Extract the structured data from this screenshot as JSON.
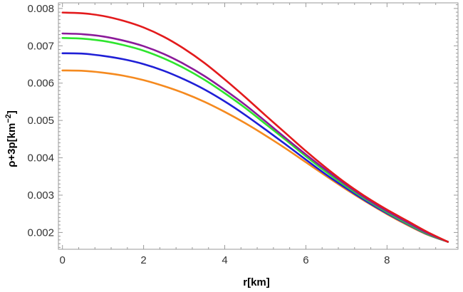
{
  "chart_data": {
    "type": "line",
    "title": "",
    "xlabel": "r[km]",
    "ylabel_parts": {
      "main": "ρ+3p[km",
      "superscript": "−2",
      "close": "]"
    },
    "xlim": [
      -0.1,
      9.75
    ],
    "ylim": [
      0.00155,
      0.00815
    ],
    "x_ticks": [
      0,
      2,
      4,
      6,
      8
    ],
    "x_tick_labels": [
      "0",
      "2",
      "4",
      "6",
      "8"
    ],
    "y_ticks": [
      0.002,
      0.003,
      0.004,
      0.005,
      0.006,
      0.007,
      0.008
    ],
    "y_tick_labels": [
      "0.002",
      "0.003",
      "0.004",
      "0.005",
      "0.006",
      "0.007",
      "0.008"
    ],
    "grid": false,
    "legend": "none",
    "series": [
      {
        "color": "#e31a1c",
        "x": [
          0,
          0.5,
          1,
          1.5,
          2,
          2.5,
          3,
          3.5,
          4,
          4.5,
          5,
          5.5,
          6,
          6.5,
          7,
          7.5,
          8,
          8.5,
          9,
          9.5
        ],
        "y": [
          0.00789,
          0.00787,
          0.0078,
          0.00767,
          0.00749,
          0.00724,
          0.00692,
          0.00654,
          0.0061,
          0.00563,
          0.00514,
          0.00466,
          0.00418,
          0.00373,
          0.00331,
          0.00294,
          0.00261,
          0.00231,
          0.00201,
          0.00175
        ]
      },
      {
        "color": "#8b1a9a",
        "x": [
          0,
          0.5,
          1,
          1.5,
          2,
          2.5,
          3,
          3.5,
          4,
          4.5,
          5,
          5.5,
          6,
          6.5,
          7,
          7.5,
          8,
          8.5,
          9,
          9.5
        ],
        "y": [
          0.00733,
          0.00731,
          0.00725,
          0.00714,
          0.00699,
          0.00678,
          0.00651,
          0.00619,
          0.00582,
          0.00542,
          0.00498,
          0.00453,
          0.00409,
          0.00367,
          0.00327,
          0.0029,
          0.00257,
          0.00227,
          0.00198,
          0.00175
        ]
      },
      {
        "color": "#2ee52e",
        "x": [
          0,
          0.5,
          1,
          1.5,
          2,
          2.5,
          3,
          3.5,
          4,
          4.5,
          5,
          5.5,
          6,
          6.5,
          7,
          7.5,
          8,
          8.5,
          9,
          9.5
        ],
        "y": [
          0.00721,
          0.00719,
          0.00713,
          0.00702,
          0.00687,
          0.00666,
          0.0064,
          0.00609,
          0.00573,
          0.00534,
          0.00491,
          0.00448,
          0.00404,
          0.00362,
          0.00323,
          0.00287,
          0.00254,
          0.00224,
          0.00196,
          0.00175
        ]
      },
      {
        "color": "#1f1fd6",
        "x": [
          0,
          0.5,
          1,
          1.5,
          2,
          2.5,
          3,
          3.5,
          4,
          4.5,
          5,
          5.5,
          6,
          6.5,
          7,
          7.5,
          8,
          8.5,
          9,
          9.5
        ],
        "y": [
          0.0068,
          0.00679,
          0.00673,
          0.00664,
          0.00651,
          0.00633,
          0.0061,
          0.00583,
          0.00551,
          0.00515,
          0.00476,
          0.00436,
          0.00395,
          0.00355,
          0.00318,
          0.00283,
          0.00251,
          0.00222,
          0.00195,
          0.00175
        ]
      },
      {
        "color": "#f58a1f",
        "x": [
          0,
          0.5,
          1,
          1.5,
          2,
          2.5,
          3,
          3.5,
          4,
          4.5,
          5,
          5.5,
          6,
          6.5,
          7,
          7.5,
          8,
          8.5,
          9,
          9.5
        ],
        "y": [
          0.00634,
          0.00633,
          0.00628,
          0.0062,
          0.00608,
          0.00592,
          0.00573,
          0.0055,
          0.00523,
          0.00493,
          0.0046,
          0.00425,
          0.00388,
          0.00351,
          0.00315,
          0.00281,
          0.00249,
          0.0022,
          0.00194,
          0.00175
        ]
      }
    ]
  }
}
